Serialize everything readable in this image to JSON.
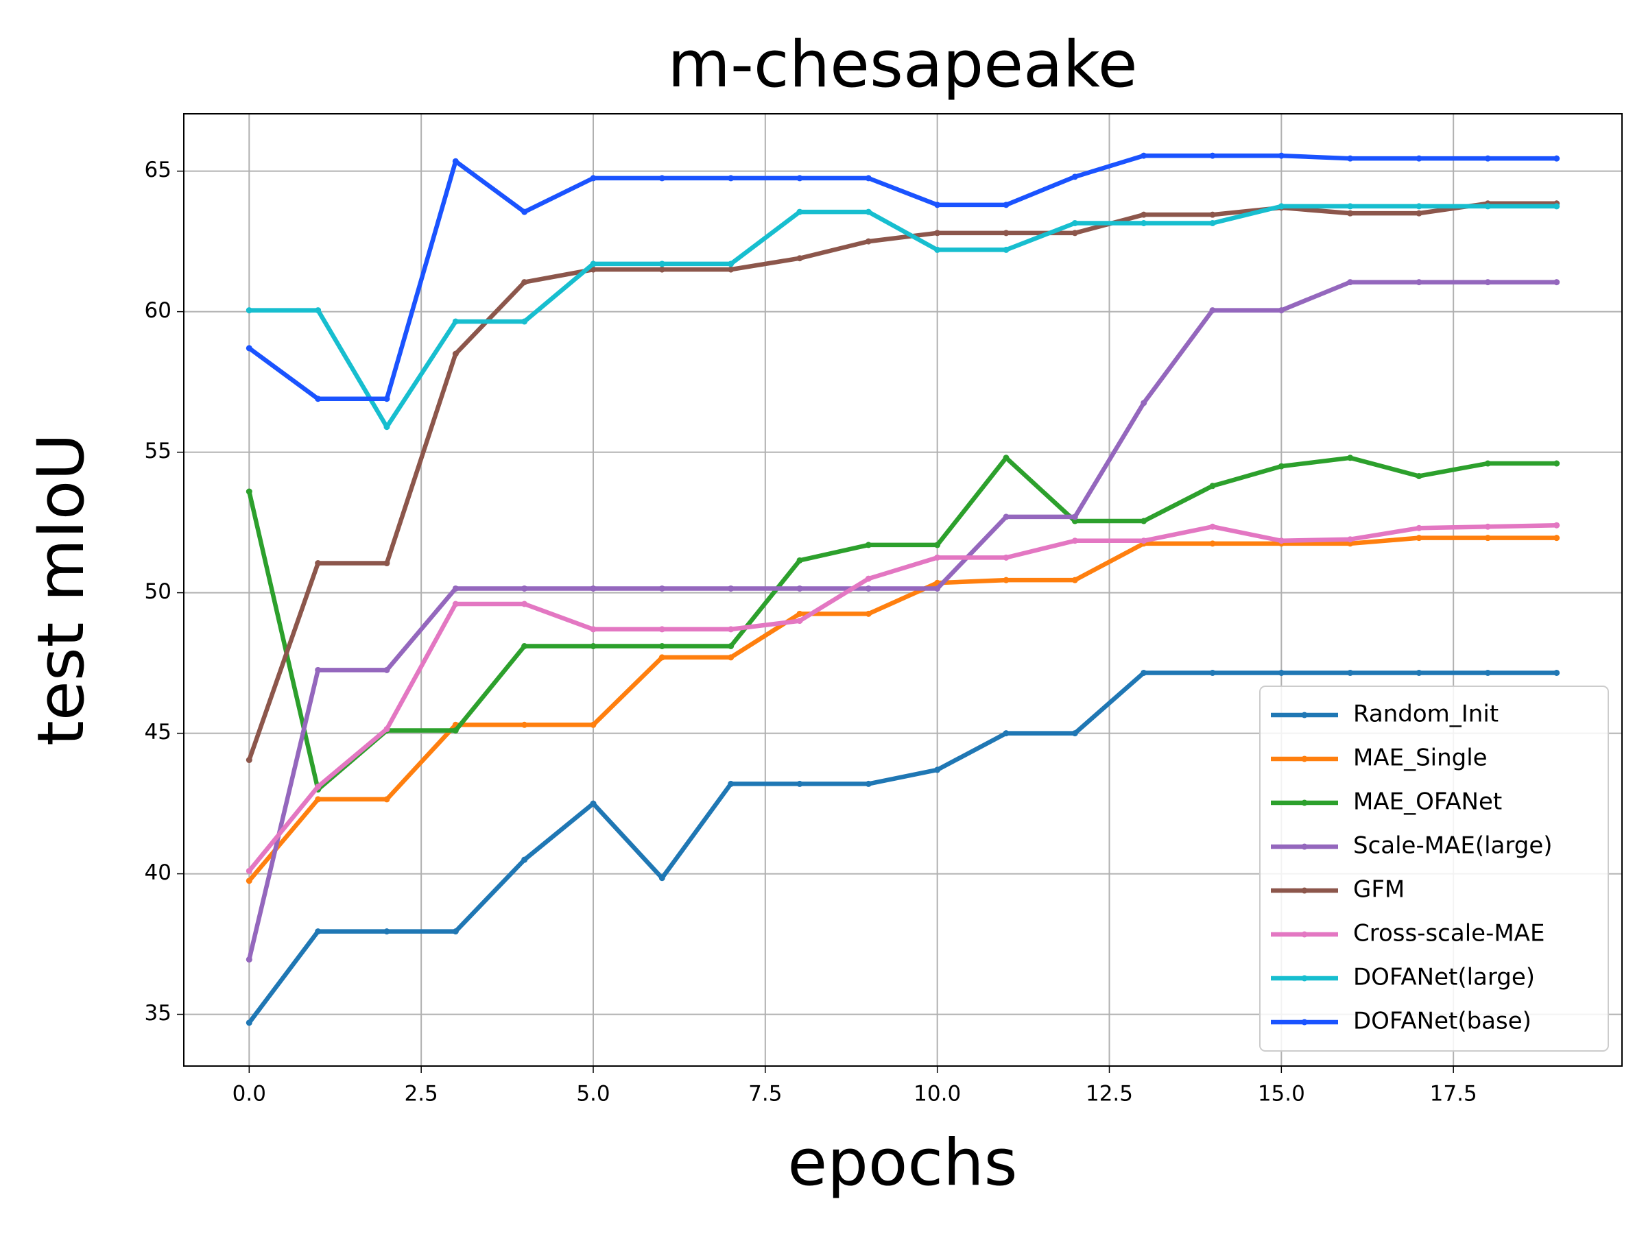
{
  "chart_data": {
    "type": "line",
    "title": "m-chesapeake",
    "x_label": "epochs",
    "y_label": "test mIoU",
    "x": [
      0,
      1,
      2,
      3,
      4,
      5,
      6,
      7,
      8,
      9,
      10,
      11,
      12,
      13,
      14,
      15,
      16,
      17,
      18,
      19
    ],
    "xlim": [
      -0.95,
      19.95
    ],
    "xticks": [
      {
        "value": 0,
        "label": "0.0"
      },
      {
        "value": 2.5,
        "label": "2.5"
      },
      {
        "value": 5,
        "label": "5.0"
      },
      {
        "value": 7.5,
        "label": "7.5"
      },
      {
        "value": 10,
        "label": "10.0"
      },
      {
        "value": 12.5,
        "label": "12.5"
      },
      {
        "value": 15,
        "label": "15.0"
      },
      {
        "value": 17.5,
        "label": "17.5"
      }
    ],
    "ylim": [
      33.16,
      67.04
    ],
    "yticks": [
      35,
      40,
      45,
      50,
      55,
      60,
      65
    ],
    "grid": true,
    "legend": "lower right",
    "series": [
      {
        "name": "Random_Init",
        "color": "#1f77b4",
        "values": [
          34.7,
          37.95,
          37.95,
          37.95,
          40.5,
          42.5,
          39.85,
          43.2,
          43.2,
          43.2,
          43.7,
          45.0,
          45.0,
          47.15,
          47.15,
          47.15,
          47.15,
          47.15,
          47.15,
          47.15
        ]
      },
      {
        "name": "MAE_Single",
        "color": "#ff7f0e",
        "values": [
          39.75,
          42.65,
          42.65,
          45.3,
          45.3,
          45.3,
          47.7,
          47.7,
          49.25,
          49.25,
          50.35,
          50.45,
          50.45,
          51.75,
          51.75,
          51.75,
          51.75,
          51.95,
          51.95,
          51.95
        ]
      },
      {
        "name": "MAE_OFANet",
        "color": "#2ca02c",
        "values": [
          53.6,
          43.0,
          45.1,
          45.1,
          48.1,
          48.1,
          48.1,
          48.1,
          51.15,
          51.7,
          51.7,
          54.8,
          52.55,
          52.55,
          53.8,
          54.5,
          54.8,
          54.15,
          54.6,
          54.6
        ]
      },
      {
        "name": "Scale-MAE(large)",
        "color": "#9467bd",
        "values": [
          36.95,
          47.25,
          47.25,
          50.15,
          50.15,
          50.15,
          50.15,
          50.15,
          50.15,
          50.15,
          50.15,
          52.7,
          52.7,
          56.75,
          60.05,
          60.05,
          61.05,
          61.05,
          61.05,
          61.05
        ]
      },
      {
        "name": "GFM",
        "color": "#8c564b",
        "values": [
          44.05,
          51.05,
          51.05,
          58.5,
          61.05,
          61.5,
          61.5,
          61.5,
          61.9,
          62.5,
          62.8,
          62.8,
          62.8,
          63.45,
          63.45,
          63.7,
          63.5,
          63.5,
          63.85,
          63.85
        ]
      },
      {
        "name": "Cross-scale-MAE",
        "color": "#e377c2",
        "values": [
          40.1,
          43.1,
          45.15,
          49.6,
          49.6,
          48.7,
          48.7,
          48.7,
          49.0,
          50.5,
          51.25,
          51.25,
          51.85,
          51.85,
          52.35,
          51.85,
          51.9,
          52.3,
          52.35,
          52.4
        ]
      },
      {
        "name": "DOFANet(large)",
        "color": "#17becf",
        "values": [
          60.05,
          60.05,
          55.9,
          59.65,
          59.65,
          61.7,
          61.7,
          61.7,
          63.55,
          63.55,
          62.2,
          62.2,
          63.15,
          63.15,
          63.15,
          63.75,
          63.75,
          63.75,
          63.75,
          63.75
        ]
      },
      {
        "name": "DOFANet(base)",
        "color": "#1a53ff",
        "values": [
          58.7,
          56.9,
          56.9,
          65.35,
          63.55,
          64.75,
          64.75,
          64.75,
          64.75,
          64.75,
          63.8,
          63.8,
          64.8,
          65.55,
          65.55,
          65.55,
          65.45,
          65.45,
          65.45,
          65.45
        ]
      }
    ]
  }
}
